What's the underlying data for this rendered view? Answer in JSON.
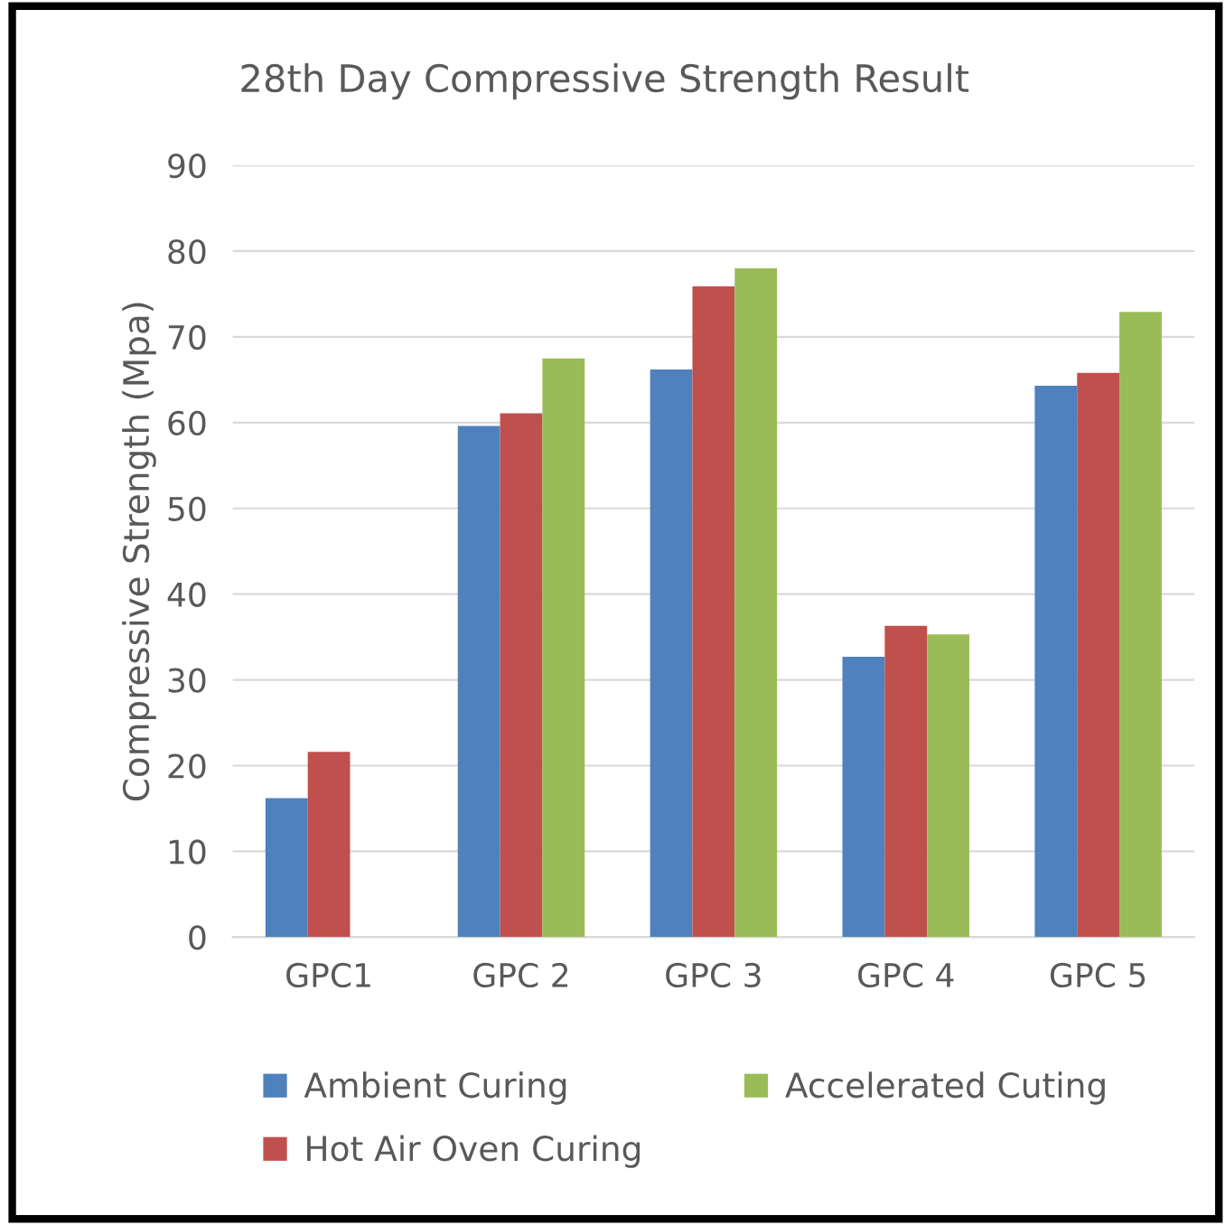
{
  "chart_data": {
    "type": "bar",
    "title": "28th Day Compressive Strength Result",
    "ylabel": "Compressive Strength (Mpa)",
    "categories": [
      "GPC1",
      "GPC 2",
      "GPC 3",
      "GPC 4",
      "GPC 5"
    ],
    "series": [
      {
        "name": "Ambient Curing",
        "color": "#4f81bd",
        "values": [
          16.2,
          59.6,
          66.2,
          32.7,
          64.3
        ]
      },
      {
        "name": "Hot Air Oven Curing",
        "color": "#c0504d",
        "values": [
          21.6,
          61.1,
          75.9,
          36.3,
          65.8
        ]
      },
      {
        "name": "Accelerated Cuting",
        "color": "#9bbb59",
        "values": [
          null,
          67.5,
          78.0,
          35.3,
          72.9
        ]
      }
    ],
    "ylim": [
      0,
      90
    ],
    "yticks": [
      0,
      10,
      20,
      30,
      40,
      50,
      60,
      70,
      80,
      90
    ],
    "grid": "y",
    "legend": "bottom"
  }
}
